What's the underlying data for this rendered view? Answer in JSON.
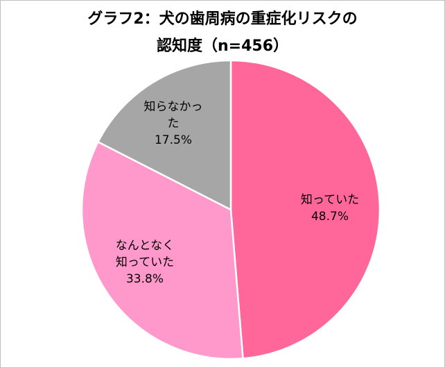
{
  "title": {
    "line1": "グラフ2：犬の歯周病の重症化リスクの",
    "line2": "認知度（n=456）"
  },
  "chart_data": {
    "type": "pie",
    "title": "グラフ2：犬の歯周病の重症化リスクの認知度（n=456）",
    "start": "12 o'clock, clockwise",
    "slices": [
      {
        "label_lines": [
          "知っていた"
        ],
        "value": 48.7,
        "value_label": "48.7%",
        "color": "#ff6699"
      },
      {
        "label_lines": [
          "なんとなく",
          "知っていた"
        ],
        "value": 33.8,
        "value_label": "33.8%",
        "color": "#ff99cc"
      },
      {
        "label_lines": [
          "知らなかっ",
          "た"
        ],
        "value": 17.5,
        "value_label": "17.5%",
        "color": "#a6a6a6"
      }
    ],
    "slice_border_color": "#ffffff",
    "legend": "none"
  }
}
